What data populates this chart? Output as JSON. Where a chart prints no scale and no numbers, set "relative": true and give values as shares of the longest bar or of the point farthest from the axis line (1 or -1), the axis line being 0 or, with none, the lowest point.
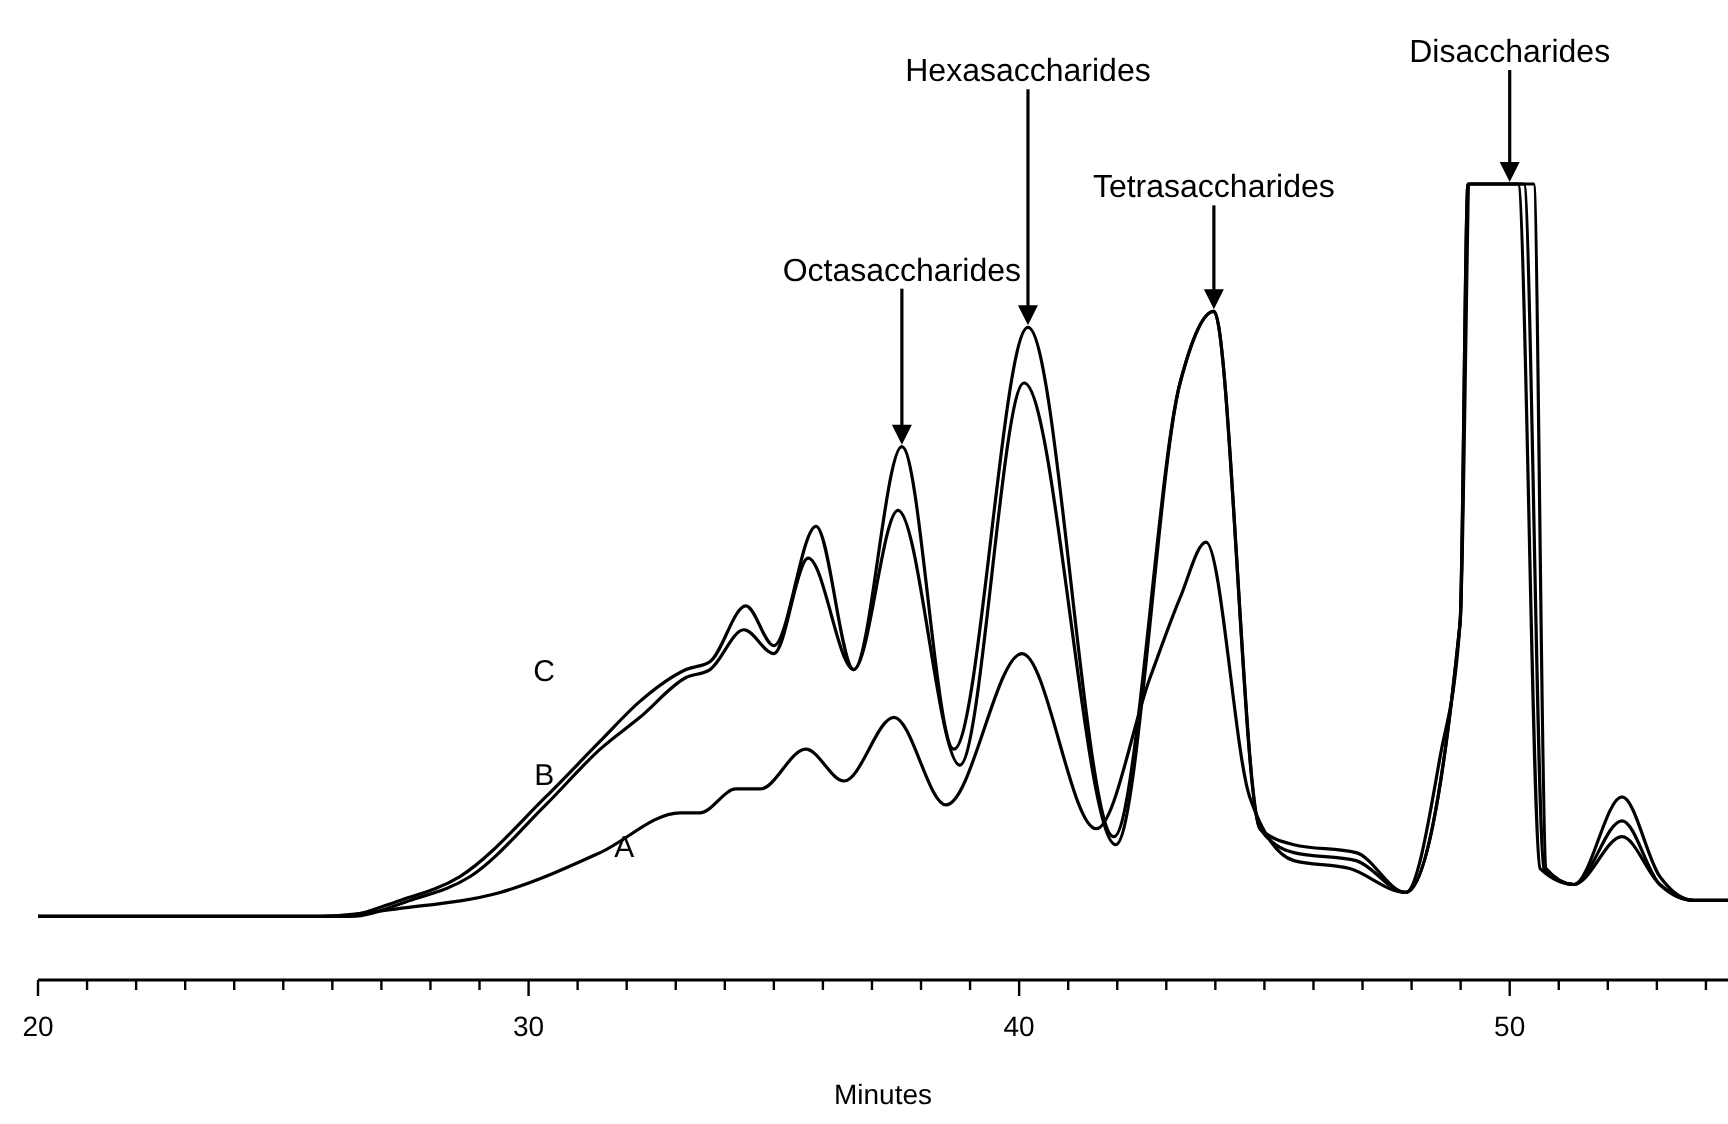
{
  "chart_data": {
    "type": "line",
    "relative": true,
    "xlabel": "Minutes",
    "xlim": [
      20,
      54.45
    ],
    "xticks": [
      20,
      {
        "value": 21,
        "label": null
      },
      {
        "value": 22,
        "label": null
      },
      {
        "value": 23,
        "label": null
      },
      {
        "value": 24,
        "label": null
      },
      {
        "value": 25,
        "label": null
      },
      {
        "value": 26,
        "label": null
      },
      {
        "value": 27,
        "label": null
      },
      {
        "value": 28,
        "label": null
      },
      {
        "value": 29,
        "label": null
      },
      30,
      {
        "value": 31,
        "label": null
      },
      {
        "value": 32,
        "label": null
      },
      {
        "value": 33,
        "label": null
      },
      {
        "value": 34,
        "label": null
      },
      {
        "value": 35,
        "label": null
      },
      {
        "value": 36,
        "label": null
      },
      {
        "value": 37,
        "label": null
      },
      {
        "value": 38,
        "label": null
      },
      {
        "value": 39,
        "label": null
      },
      40,
      {
        "value": 41,
        "label": null
      },
      {
        "value": 42,
        "label": null
      },
      {
        "value": 43,
        "label": null
      },
      {
        "value": 44,
        "label": null
      },
      {
        "value": 45,
        "label": null
      },
      {
        "value": 46,
        "label": null
      },
      {
        "value": 47,
        "label": null
      },
      {
        "value": 48,
        "label": null
      },
      {
        "value": 49,
        "label": null
      },
      50,
      {
        "value": 51,
        "label": null
      },
      {
        "value": 52,
        "label": null
      },
      {
        "value": 53,
        "label": null
      },
      {
        "value": 54,
        "label": null
      }
    ],
    "grid": false,
    "legend": false,
    "marker": "none",
    "line_style": "solid",
    "series": [
      {
        "name": "A",
        "color": "#000000",
        "x": [
          20,
          25.75,
          27.38,
          29.42,
          31.46,
          33.09,
          33.49,
          34.23,
          34.72,
          35.65,
          36.43,
          37.45,
          38.51,
          40.06,
          41.57,
          42.67,
          43.28,
          43.81,
          44.7,
          45.6,
          46.74,
          47.88,
          48.99,
          49.19,
          50.17,
          50.62,
          51.31,
          52.29,
          53.06,
          53.75,
          54.45
        ],
        "values": [
          0.08,
          0.08,
          0.09,
          0.11,
          0.16,
          0.21,
          0.21,
          0.24,
          0.24,
          0.29,
          0.25,
          0.33,
          0.22,
          0.41,
          0.19,
          0.38,
          0.48,
          0.55,
          0.23,
          0.15,
          0.14,
          0.11,
          0.45,
          1,
          1,
          0.14,
          0.12,
          0.18,
          0.12,
          0.1,
          0.1
        ]
      },
      {
        "name": "B",
        "color": "#000000",
        "x": [
          20,
          26.36,
          27.58,
          28.81,
          30.35,
          31.46,
          32.27,
          33.21,
          33.7,
          34.39,
          35.0,
          35.7,
          36.63,
          37.53,
          38.79,
          40.1,
          41.97,
          43.28,
          43.97,
          44.91,
          45.6,
          46.87,
          47.88,
          48.99,
          49.15,
          50.29,
          50.7,
          51.31,
          52.29,
          53.06,
          53.75,
          54.45
        ],
        "values": [
          0.08,
          0.08,
          0.1,
          0.13,
          0.22,
          0.29,
          0.33,
          0.38,
          0.39,
          0.44,
          0.41,
          0.53,
          0.39,
          0.59,
          0.27,
          0.75,
          0.17,
          0.75,
          0.84,
          0.19,
          0.16,
          0.15,
          0.11,
          0.45,
          1,
          1,
          0.14,
          0.12,
          0.2,
          0.12,
          0.1,
          0.1
        ]
      },
      {
        "name": "C",
        "color": "#000000",
        "x": [
          20,
          26.16,
          27.38,
          28.6,
          30.35,
          31.46,
          32.27,
          33.21,
          33.7,
          34.43,
          35.0,
          35.86,
          36.63,
          37.61,
          38.67,
          40.18,
          41.93,
          43.28,
          43.97,
          44.91,
          45.6,
          46.87,
          47.88,
          48.58,
          48.99,
          49.15,
          50.49,
          50.74,
          51.31,
          52.29,
          53.06,
          53.75,
          54.45
        ],
        "values": [
          0.08,
          0.08,
          0.1,
          0.13,
          0.23,
          0.3,
          0.35,
          0.39,
          0.4,
          0.47,
          0.42,
          0.57,
          0.39,
          0.67,
          0.29,
          0.82,
          0.18,
          0.75,
          0.84,
          0.19,
          0.17,
          0.16,
          0.11,
          0.28,
          0.45,
          1,
          1,
          0.14,
          0.12,
          0.23,
          0.13,
          0.1,
          0.1
        ]
      }
    ],
    "annotations": [
      {
        "text": "Octasaccharides",
        "x": 37.61,
        "y": 0.67
      },
      {
        "text": "Hexasaccharides",
        "x": 40.18,
        "y": 0.82
      },
      {
        "text": "Tetrasaccharides",
        "x": 43.97,
        "y": 0.84
      },
      {
        "text": "Disaccharides",
        "x": 50.0,
        "y": 1
      }
    ]
  }
}
